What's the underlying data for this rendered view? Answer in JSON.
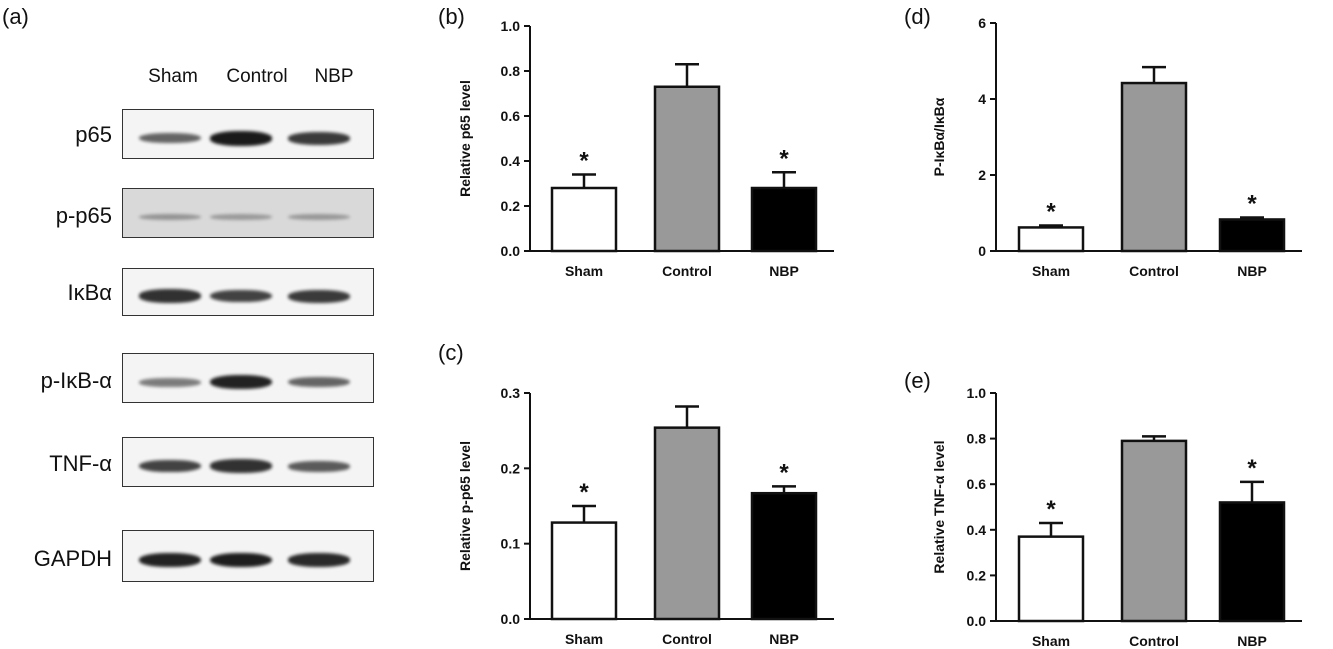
{
  "panel_a": {
    "letter": "(a)",
    "lanes": [
      "Sham",
      "Control",
      "NBP"
    ],
    "blots": [
      {
        "name": "p65",
        "intensity": [
          0.55,
          1.0,
          0.8
        ]
      },
      {
        "name": "p-p65",
        "intensity": [
          0.15,
          0.1,
          0.12
        ]
      },
      {
        "name": "IκBα",
        "intensity": [
          0.85,
          0.75,
          0.8
        ]
      },
      {
        "name": "p-IκB-α",
        "intensity": [
          0.4,
          0.95,
          0.55
        ]
      },
      {
        "name": "TNF-α",
        "intensity": [
          0.75,
          0.85,
          0.6
        ]
      },
      {
        "name": "GAPDH",
        "intensity": [
          0.95,
          0.98,
          0.9
        ]
      }
    ]
  },
  "chart_data": [
    {
      "panel": "(b)",
      "type": "bar",
      "categories": [
        "Sham",
        "Control",
        "NBP"
      ],
      "values": [
        0.28,
        0.73,
        0.28
      ],
      "errors": [
        0.06,
        0.1,
        0.07
      ],
      "significance": [
        "*",
        "",
        "*"
      ],
      "ylabel": "Relative p65 level",
      "ylim": [
        0,
        1.0
      ],
      "yticks": [
        "0.0",
        "0.2",
        "0.4",
        "0.6",
        "0.8",
        "1.0"
      ],
      "colors": [
        "#ffffff",
        "#999999",
        "#000000"
      ]
    },
    {
      "panel": "(c)",
      "type": "bar",
      "categories": [
        "Sham",
        "Control",
        "NBP"
      ],
      "values": [
        0.128,
        0.254,
        0.167
      ],
      "errors": [
        0.022,
        0.028,
        0.009
      ],
      "significance": [
        "*",
        "",
        "*"
      ],
      "ylabel": "Relative p-p65 level",
      "ylim": [
        0,
        0.3
      ],
      "yticks": [
        "0.0",
        "0.1",
        "0.2",
        "0.3"
      ],
      "colors": [
        "#ffffff",
        "#999999",
        "#000000"
      ]
    },
    {
      "panel": "(d)",
      "type": "bar",
      "categories": [
        "Sham",
        "Control",
        "NBP"
      ],
      "values": [
        0.62,
        4.42,
        0.83
      ],
      "errors": [
        0.05,
        0.42,
        0.05
      ],
      "significance": [
        "*",
        "",
        "*"
      ],
      "ylabel": "P-IκBα/IκBα",
      "ylim": [
        0,
        6
      ],
      "yticks": [
        "0",
        "2",
        "4",
        "6"
      ],
      "colors": [
        "#ffffff",
        "#999999",
        "#000000"
      ]
    },
    {
      "panel": "(e)",
      "type": "bar",
      "categories": [
        "Sham",
        "Control",
        "NBP"
      ],
      "values": [
        0.37,
        0.79,
        0.52
      ],
      "errors": [
        0.06,
        0.02,
        0.09
      ],
      "significance": [
        "*",
        "",
        "*"
      ],
      "ylabel": "Relative TNF-α level",
      "ylim": [
        0,
        1.0
      ],
      "yticks": [
        "0.0",
        "0.2",
        "0.4",
        "0.6",
        "0.8",
        "1.0"
      ],
      "colors": [
        "#ffffff",
        "#999999",
        "#000000"
      ]
    }
  ]
}
